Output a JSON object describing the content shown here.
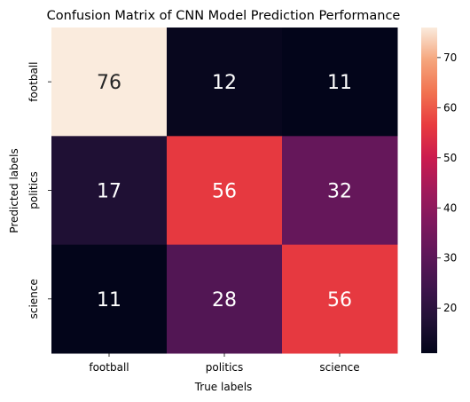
{
  "chart_data": {
    "type": "heatmap",
    "title": "Confusion Matrix of CNN Model Prediction Performance",
    "xlabel": "True labels",
    "ylabel": "Predicted labels",
    "x_categories": [
      "football",
      "politics",
      "science"
    ],
    "y_categories": [
      "football",
      "politics",
      "science"
    ],
    "values": [
      [
        76,
        12,
        11
      ],
      [
        17,
        56,
        32
      ],
      [
        11,
        28,
        56
      ]
    ],
    "colorbar": {
      "colormap": "rocket",
      "vmin": 11,
      "vmax": 76,
      "ticks": [
        "20",
        "30",
        "40",
        "50",
        "60",
        "70"
      ]
    },
    "grid": false,
    "legend": "colorbar-right"
  }
}
